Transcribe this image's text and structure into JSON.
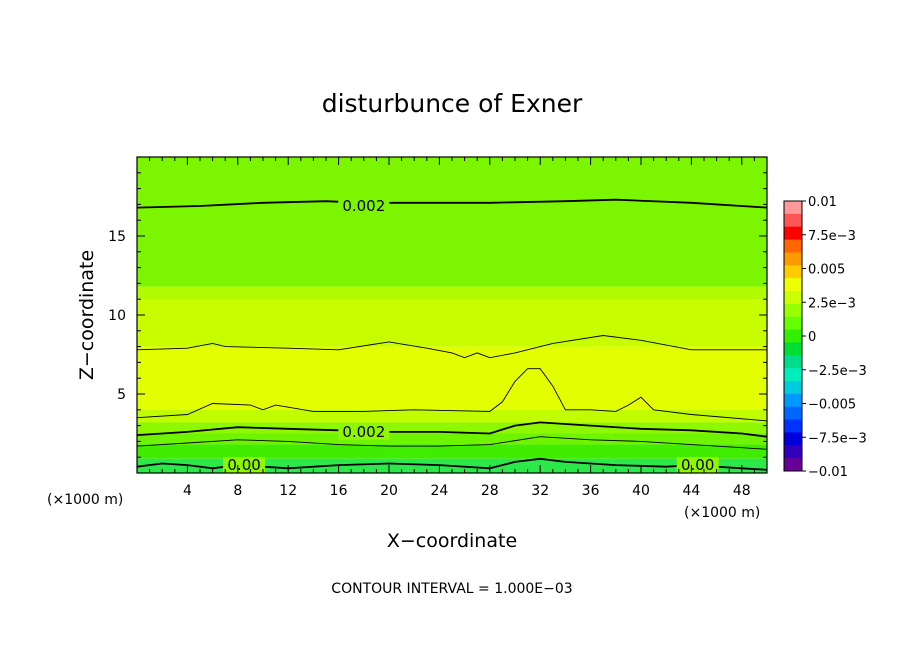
{
  "chart_data": {
    "type": "contour",
    "title": "disturbunce of Exner",
    "xlabel": "X−coordinate",
    "ylabel": "Z−coordinate",
    "x_unit": "(×1000 m)",
    "x_unit_left": "(×1000 m)",
    "xlim": [
      0,
      50
    ],
    "ylim": [
      0,
      20
    ],
    "x_ticks": [
      4,
      8,
      12,
      16,
      20,
      24,
      28,
      32,
      36,
      40,
      44,
      48
    ],
    "y_ticks": [
      5,
      10,
      15
    ],
    "footer": "CONTOUR INTERVAL = 1.000E−03",
    "contour_interval": 0.001,
    "colorbar": {
      "range": [
        -0.01,
        0.01
      ],
      "tick_labels": [
        "0.01",
        "7.5e−3",
        "0.005",
        "2.5e−3",
        "0",
        "−2.5e−3",
        "−0.005",
        "−7.5e−3",
        "−0.01"
      ],
      "tick_values": [
        0.01,
        0.0075,
        0.005,
        0.0025,
        0,
        -0.0025,
        -0.005,
        -0.0075,
        -0.01
      ],
      "colors": [
        "#ff9999",
        "#ff5555",
        "#ff0000",
        "#ff6600",
        "#ff9900",
        "#ffcc00",
        "#eeff00",
        "#ccff00",
        "#99ff00",
        "#66ff00",
        "#33ee00",
        "#00dd33",
        "#00dd88",
        "#00eebb",
        "#00ccdd",
        "#0099ff",
        "#0066ff",
        "#0033ff",
        "#0000dd",
        "#3300bb",
        "#660099"
      ]
    },
    "contour_labels": [
      {
        "text": "0.002",
        "x": 18,
        "z": 16.9
      },
      {
        "text": "0.002",
        "x": 18,
        "z": 2.6
      },
      {
        "text": "0.00",
        "x": 8.5,
        "z": 0.5
      },
      {
        "text": "0.00",
        "x": 44.5,
        "z": 0.5
      }
    ],
    "contour_lines": [
      {
        "level": 0.002,
        "major": true,
        "points": [
          [
            0,
            16.8
          ],
          [
            5,
            16.9
          ],
          [
            10,
            17.1
          ],
          [
            15,
            17.2
          ],
          [
            18,
            17.1
          ],
          [
            22,
            17.1
          ],
          [
            28,
            17.1
          ],
          [
            34,
            17.2
          ],
          [
            38,
            17.3
          ],
          [
            44,
            17.1
          ],
          [
            50,
            16.8
          ]
        ]
      },
      {
        "level": 0.003,
        "major": false,
        "points": [
          [
            0,
            7.8
          ],
          [
            4,
            7.9
          ],
          [
            6,
            8.2
          ],
          [
            7,
            8.0
          ],
          [
            12,
            7.9
          ],
          [
            16,
            7.8
          ],
          [
            20,
            8.3
          ],
          [
            23,
            7.9
          ],
          [
            25,
            7.6
          ],
          [
            26,
            7.3
          ],
          [
            27,
            7.6
          ],
          [
            28,
            7.3
          ],
          [
            30,
            7.6
          ],
          [
            33,
            8.2
          ],
          [
            37,
            8.7
          ],
          [
            40,
            8.4
          ],
          [
            44,
            7.8
          ],
          [
            50,
            7.8
          ]
        ]
      },
      {
        "level": 0.003,
        "major": false,
        "points": [
          [
            0,
            3.5
          ],
          [
            4,
            3.7
          ],
          [
            6,
            4.4
          ],
          [
            9,
            4.3
          ],
          [
            10,
            4.0
          ],
          [
            11,
            4.3
          ],
          [
            14,
            3.9
          ],
          [
            18,
            3.9
          ],
          [
            22,
            4.0
          ],
          [
            28,
            3.9
          ],
          [
            29,
            4.5
          ],
          [
            30,
            5.8
          ],
          [
            31,
            6.6
          ],
          [
            32,
            6.6
          ],
          [
            33,
            5.5
          ],
          [
            34,
            4.0
          ],
          [
            36,
            4.0
          ],
          [
            38,
            3.9
          ],
          [
            39,
            4.3
          ],
          [
            40,
            4.8
          ],
          [
            41,
            4.0
          ],
          [
            44,
            3.7
          ],
          [
            50,
            3.3
          ]
        ]
      },
      {
        "level": 0.002,
        "major": true,
        "points": [
          [
            0,
            2.4
          ],
          [
            4,
            2.6
          ],
          [
            8,
            2.9
          ],
          [
            12,
            2.8
          ],
          [
            16,
            2.7
          ],
          [
            20,
            2.6
          ],
          [
            24,
            2.6
          ],
          [
            28,
            2.5
          ],
          [
            30,
            3.0
          ],
          [
            32,
            3.2
          ],
          [
            36,
            3.0
          ],
          [
            40,
            2.8
          ],
          [
            44,
            2.7
          ],
          [
            48,
            2.5
          ],
          [
            50,
            2.3
          ]
        ]
      },
      {
        "level": 0.001,
        "major": false,
        "points": [
          [
            0,
            1.7
          ],
          [
            4,
            1.9
          ],
          [
            8,
            2.1
          ],
          [
            12,
            2.0
          ],
          [
            16,
            1.8
          ],
          [
            20,
            1.7
          ],
          [
            24,
            1.7
          ],
          [
            28,
            1.8
          ],
          [
            32,
            2.3
          ],
          [
            36,
            2.1
          ],
          [
            40,
            2.0
          ],
          [
            44,
            1.8
          ],
          [
            48,
            1.6
          ],
          [
            50,
            1.5
          ]
        ]
      },
      {
        "level": 0.0,
        "major": true,
        "points": [
          [
            0,
            0.4
          ],
          [
            2,
            0.6
          ],
          [
            4,
            0.5
          ],
          [
            6,
            0.3
          ],
          [
            8,
            0.5
          ],
          [
            10,
            0.4
          ],
          [
            12,
            0.3
          ],
          [
            16,
            0.5
          ],
          [
            20,
            0.6
          ],
          [
            24,
            0.5
          ],
          [
            28,
            0.3
          ],
          [
            30,
            0.7
          ],
          [
            32,
            0.9
          ],
          [
            34,
            0.7
          ],
          [
            38,
            0.5
          ],
          [
            42,
            0.4
          ],
          [
            44,
            0.5
          ],
          [
            48,
            0.3
          ],
          [
            50,
            0.2
          ]
        ]
      }
    ],
    "fill_bands": [
      {
        "zmax": 20,
        "color": "#7cf500"
      },
      {
        "zmax": 11.8,
        "color": "#b0fb00"
      },
      {
        "zmax": 11.0,
        "color": "#c8fd00"
      },
      {
        "zmax": 8.0,
        "color": "#e2fe00"
      },
      {
        "zmax": 4.0,
        "color": "#c2fc00"
      },
      {
        "zmax": 3.2,
        "color": "#8ef800"
      },
      {
        "zmax": 2.5,
        "color": "#6ef300"
      },
      {
        "zmax": 1.8,
        "color": "#40ec00"
      },
      {
        "zmax": 0.9,
        "color": "#2de84a"
      }
    ]
  }
}
